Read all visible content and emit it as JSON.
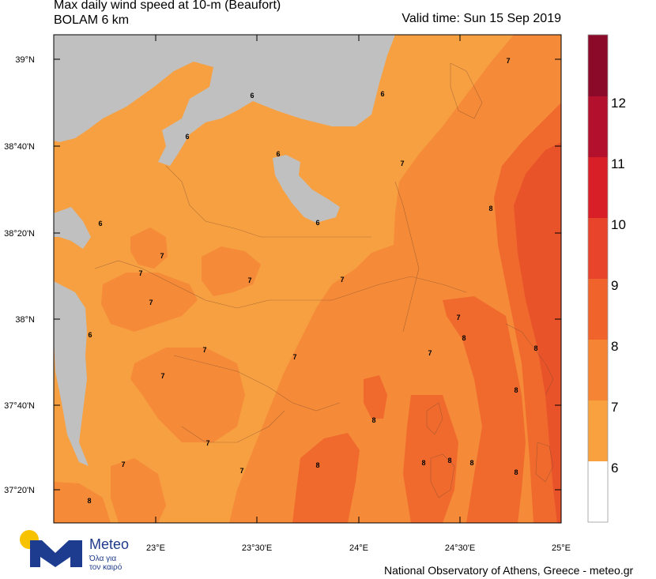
{
  "title": {
    "line1": "Max daily wind speed at 10-m (Beaufort)",
    "line2": "BOLAM 6 km",
    "valid_time": "Valid time: Sun 15 Sep 2019"
  },
  "axes": {
    "lat_labels": [
      "39°N",
      "38°40'N",
      "38°20'N",
      "38°N",
      "37°40'N",
      "37°20'N"
    ],
    "lon_labels": [
      "23°E",
      "23°30'E",
      "24°E",
      "24°30'E",
      "25°E"
    ]
  },
  "legend": {
    "levels": [
      "12",
      "11",
      "10",
      "9",
      "8",
      "7",
      "6"
    ],
    "colors": [
      "#8b0a2a",
      "#b3102e",
      "#d81f27",
      "#e8432b",
      "#f0642c",
      "#f58535",
      "#f9a03f",
      "#ffffff"
    ]
  },
  "contour_labels": [
    "6",
    "6",
    "6",
    "6",
    "6",
    "6",
    "6",
    "7",
    "7",
    "7",
    "7",
    "7",
    "7",
    "7",
    "7",
    "7",
    "7",
    "7",
    "7",
    "7",
    "7",
    "7",
    "8",
    "8",
    "8",
    "8",
    "8",
    "8",
    "8",
    "8",
    "8",
    "8",
    "8"
  ],
  "fills": {
    "sea_low": "#f7a041",
    "mid": "#f58a38",
    "high": "#f06a2e",
    "higher": "#e9532a",
    "land": "#c0c0c0"
  },
  "logo": {
    "name": "Meteo",
    "tagline_1": "Όλα για",
    "tagline_2": "τον καιρό"
  },
  "credit": "National Observatory of Athens, Greece - meteo.gr"
}
